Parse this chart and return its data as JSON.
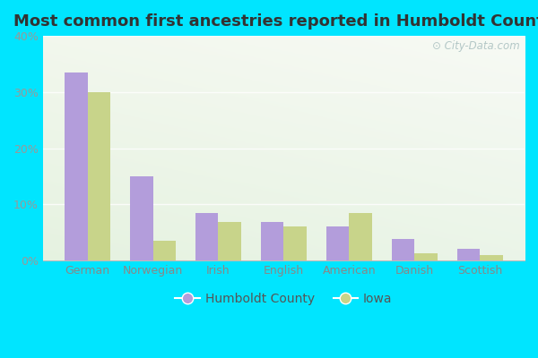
{
  "title": "Most common first ancestries reported in Humboldt County",
  "categories": [
    "German",
    "Norwegian",
    "Irish",
    "English",
    "American",
    "Danish",
    "Scottish"
  ],
  "humboldt_values": [
    33.5,
    15.0,
    8.5,
    6.8,
    6.0,
    3.8,
    2.0
  ],
  "iowa_values": [
    30.0,
    3.5,
    6.8,
    6.0,
    8.5,
    1.2,
    0.9
  ],
  "humboldt_color": "#b39ddb",
  "iowa_color": "#c8d48a",
  "ylim": [
    0,
    40
  ],
  "yticks": [
    0,
    10,
    20,
    30,
    40
  ],
  "ytick_labels": [
    "0%",
    "10%",
    "20%",
    "30%",
    "40%"
  ],
  "legend_humboldt": "Humboldt County",
  "legend_iowa": "Iowa",
  "bar_width": 0.35,
  "background_outer": "#00e5ff",
  "watermark": "City-Data.com",
  "title_fontsize": 13,
  "tick_fontsize": 9,
  "legend_fontsize": 10
}
